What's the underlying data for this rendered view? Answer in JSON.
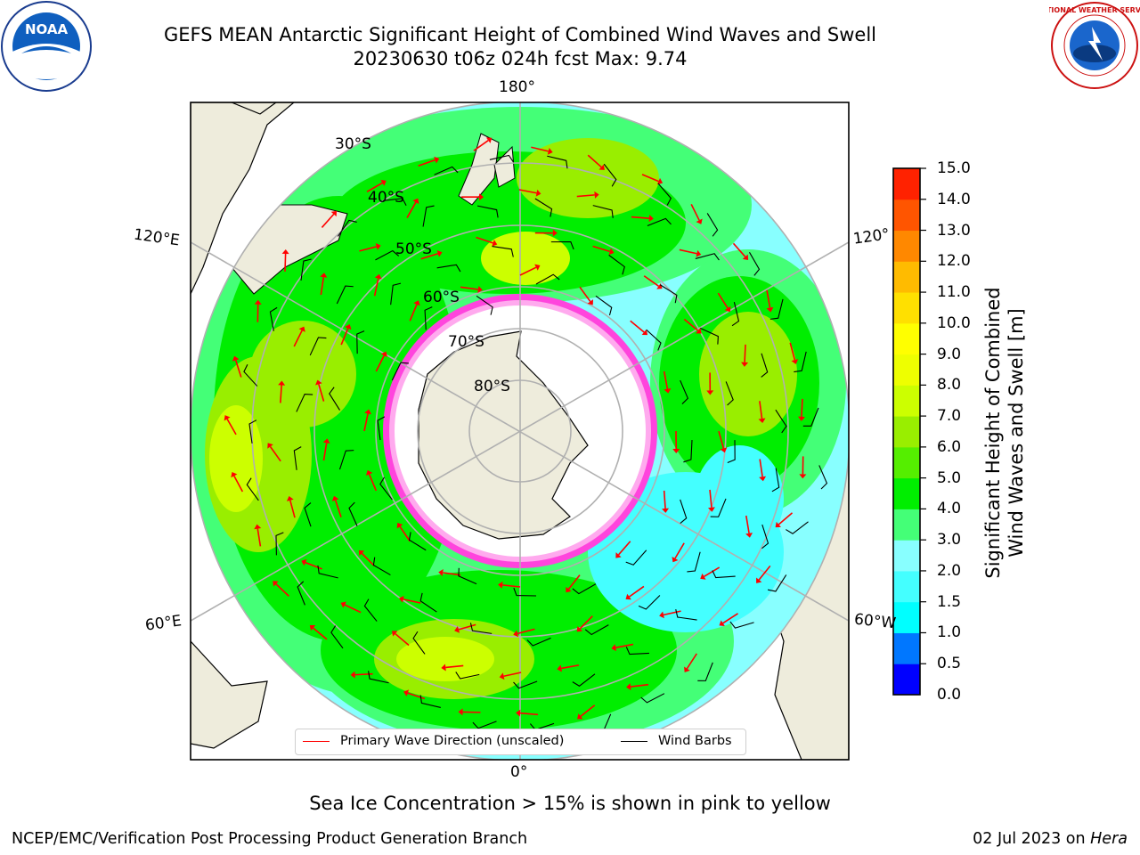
{
  "title": {
    "line1": "GEFS MEAN Antarctic Significant Height of Combined Wind Waves and Swell",
    "line2": "20230630 t06z 024h fcst   Max: 9.74"
  },
  "logos": {
    "left": "noaa-logo",
    "left_text": "NOAA",
    "right": "nws-logo",
    "right_text": "NATIONAL WEATHER SERVICE"
  },
  "map": {
    "projection": "south-polar-stereographic",
    "lat_labels": [
      "30°S",
      "40°S",
      "50°S",
      "60°S",
      "70°S",
      "80°S"
    ],
    "lon_labels": {
      "top": "180°",
      "bottom": "0°",
      "upper_left": "120°E",
      "lower_left": "60°E",
      "upper_right": "120°",
      "lower_right": "60°W"
    },
    "max_value": 9.74,
    "colors": {
      "land": "#eeecdc",
      "ice": "#ffffff",
      "ice_edge": "#ff33cc",
      "grid": "#b0b0b0"
    }
  },
  "colorbar": {
    "label_line1": "Significant Height of Combined",
    "label_line2": "Wind Waves and Swell [m]",
    "ticks": [
      "15.0",
      "14.0",
      "13.0",
      "12.0",
      "11.0",
      "10.0",
      "9.0",
      "8.0",
      "7.0",
      "6.0",
      "5.0",
      "4.0",
      "3.0",
      "2.0",
      "1.5",
      "1.0",
      "0.5",
      "0.0"
    ],
    "colors": [
      "#0000ff",
      "#0077ff",
      "#00ffff",
      "#44ffff",
      "#88ffff",
      "#44ff77",
      "#00ee00",
      "#55ee00",
      "#99ee00",
      "#ccff00",
      "#eeff00",
      "#ffff00",
      "#ffe000",
      "#ffbb00",
      "#ff8800",
      "#ff5500",
      "#ff2200",
      "#ff0000"
    ]
  },
  "legend": {
    "item1": "Primary Wave Direction (unscaled)",
    "item2": "Wind Barbs",
    "item1_color": "#ff0000",
    "item2_color": "#000000"
  },
  "footer": {
    "note": "Sea Ice Concentration > 15% is shown in pink to yellow",
    "credit": "NCEP/EMC/Verification Post Processing Product Generation Branch",
    "date": "02 Jul 2023 on ",
    "host": "Hera"
  }
}
